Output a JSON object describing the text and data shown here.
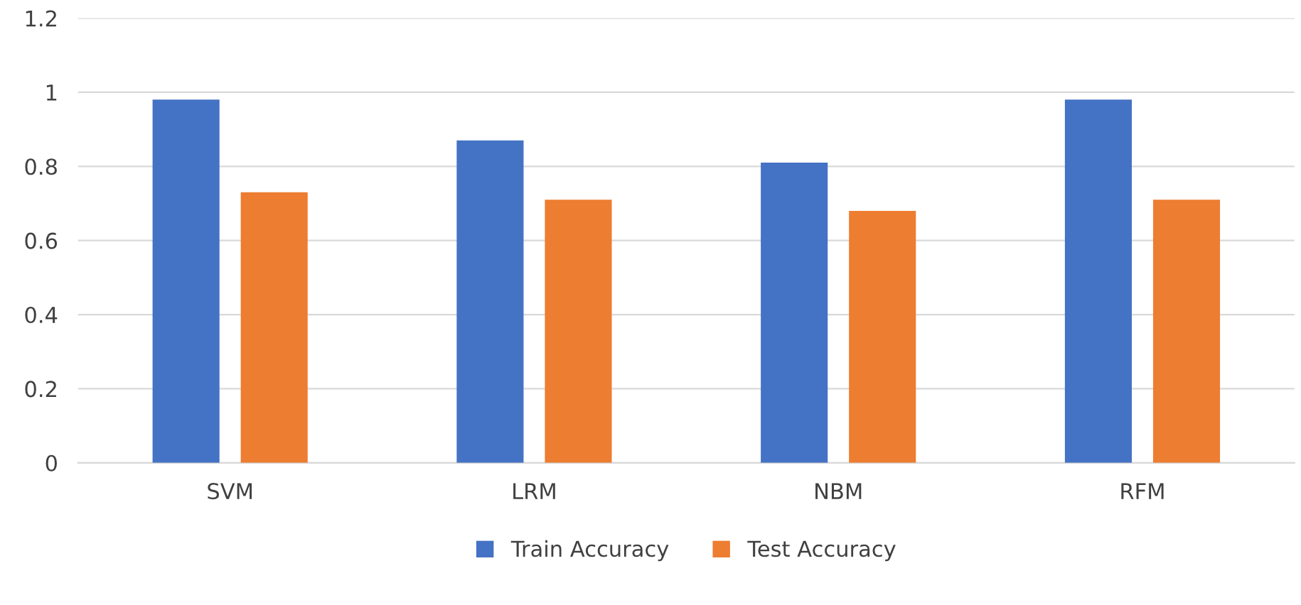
{
  "chart_data": {
    "type": "bar",
    "categories": [
      "SVM",
      "LRM",
      "NBM",
      "RFM"
    ],
    "series": [
      {
        "name": "Train Accuracy",
        "color": "#4472c4",
        "values": [
          0.98,
          0.87,
          0.81,
          0.98
        ]
      },
      {
        "name": "Test Accuracy",
        "color": "#ed7d31",
        "values": [
          0.73,
          0.71,
          0.68,
          0.71
        ]
      }
    ],
    "ylim": [
      0,
      1.2
    ],
    "yticks": [
      0,
      0.2,
      0.4,
      0.6,
      0.8,
      1,
      1.2
    ],
    "grid": "y",
    "legend": "bottom"
  }
}
